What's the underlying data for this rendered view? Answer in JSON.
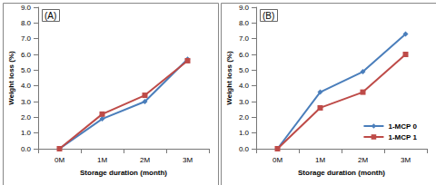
{
  "chart_data": [
    {
      "type": "line",
      "title": "(A)",
      "x_label": "Storage duration (month)",
      "y_label": "Weight loss (%)",
      "categories": [
        "0M",
        "1M",
        "2M",
        "3M"
      ],
      "series": [
        {
          "name": "1-MCP 0",
          "color": "#4a7ebb",
          "marker": "diamond",
          "values": [
            0,
            1.9,
            3.0,
            5.7
          ]
        },
        {
          "name": "1-MCP 1",
          "color": "#be4b48",
          "marker": "square",
          "values": [
            0,
            2.2,
            3.4,
            5.6
          ]
        }
      ],
      "ylim": [
        0,
        9
      ],
      "yticks": [
        {
          "value": 0,
          "label": "0.0"
        },
        {
          "value": 1,
          "label": "1.0"
        },
        {
          "value": 2,
          "label": "2.0"
        },
        {
          "value": 3,
          "label": "3.0"
        },
        {
          "value": 4,
          "label": "4.0"
        },
        {
          "value": 5,
          "label": "5.0"
        },
        {
          "value": 6,
          "label": "6.0"
        },
        {
          "value": 7,
          "label": "7.0"
        },
        {
          "value": 8,
          "label": "8.0"
        },
        {
          "value": 9,
          "label": "9.0"
        }
      ],
      "grid": false
    },
    {
      "type": "line",
      "title": "(B)",
      "x_label": "Storage duration (month)",
      "y_label": "Weight loss (%)",
      "categories": [
        "0M",
        "1M",
        "2M",
        "3M"
      ],
      "series": [
        {
          "name": "1-MCP 0",
          "color": "#4a7ebb",
          "marker": "diamond",
          "values": [
            0,
            3.6,
            4.9,
            7.3
          ]
        },
        {
          "name": "1-MCP 1",
          "color": "#be4b48",
          "marker": "square",
          "values": [
            0,
            2.6,
            3.6,
            6.0
          ]
        }
      ],
      "ylim": [
        0,
        9
      ],
      "yticks": [
        {
          "value": 0,
          "label": "0.0"
        },
        {
          "value": 1,
          "label": "1.0"
        },
        {
          "value": 2,
          "label": "2.0"
        },
        {
          "value": 3,
          "label": "3.0"
        },
        {
          "value": 4,
          "label": "4.0"
        },
        {
          "value": 5,
          "label": "5.0"
        },
        {
          "value": 6,
          "label": "6.0"
        },
        {
          "value": 7,
          "label": "7.0"
        },
        {
          "value": 8,
          "label": "8.0"
        },
        {
          "value": 9,
          "label": "9.0"
        }
      ],
      "grid": false,
      "legend": "lower right"
    }
  ]
}
